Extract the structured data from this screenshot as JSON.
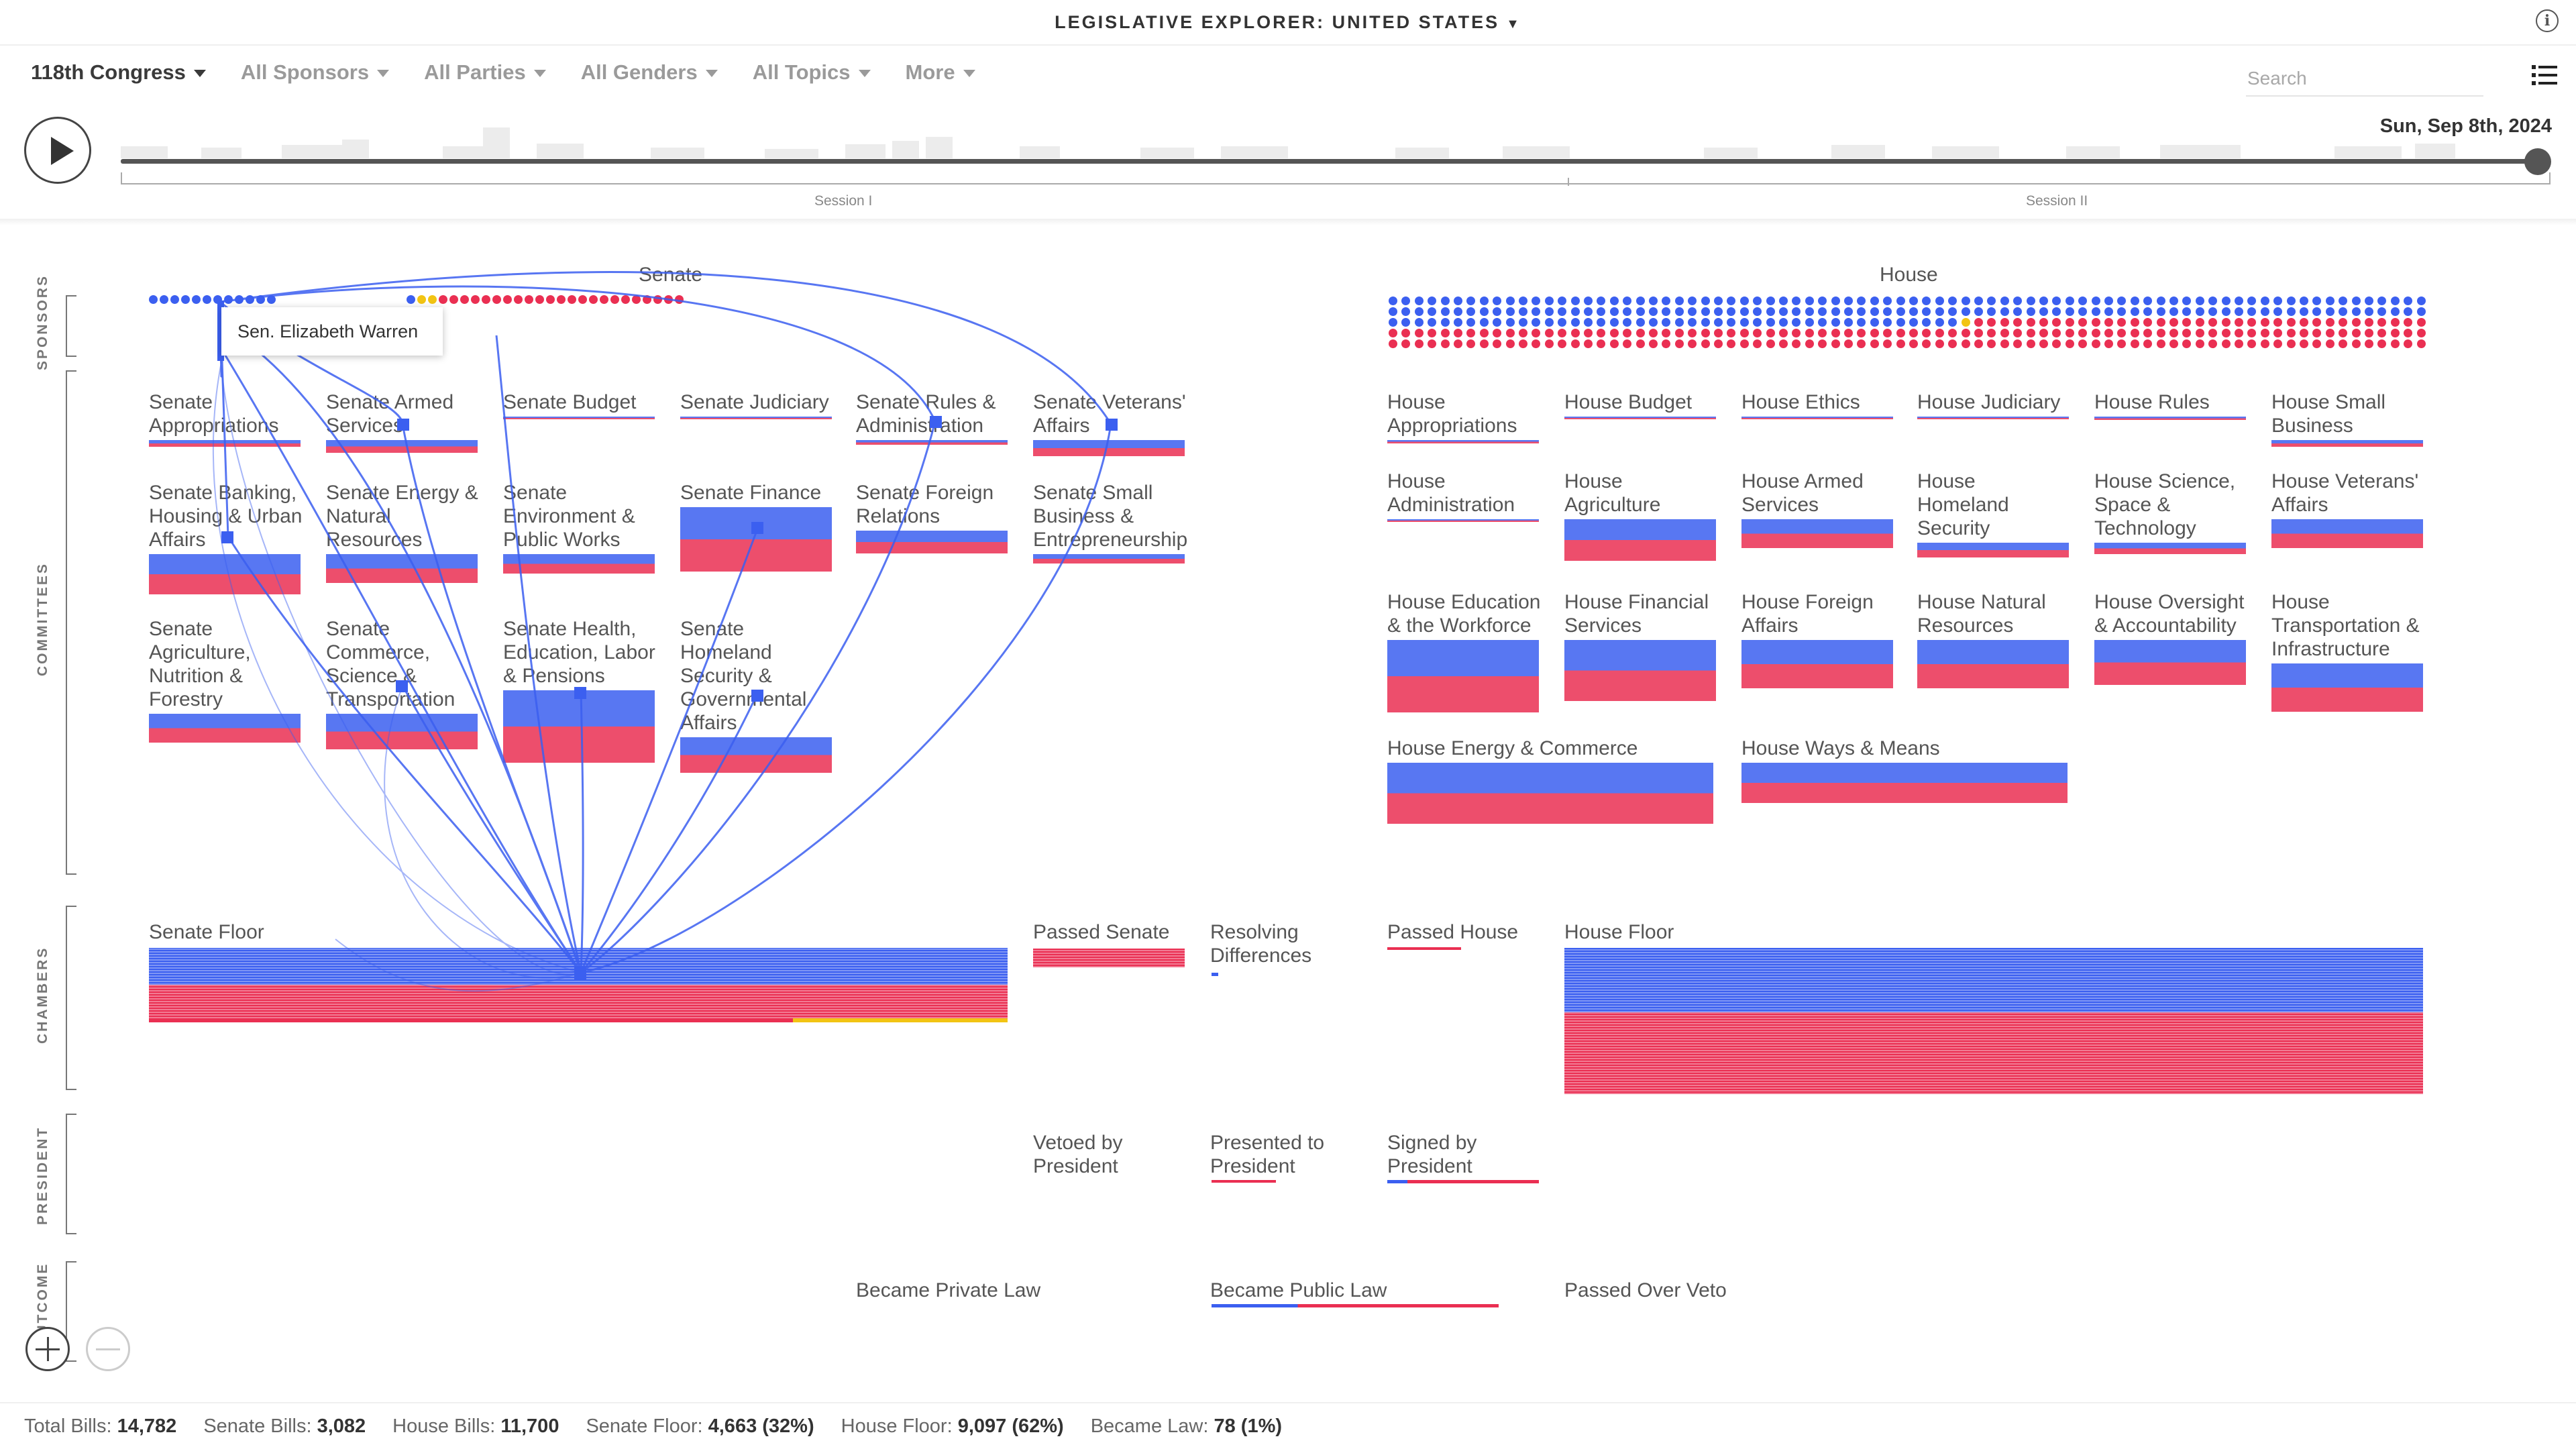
{
  "app": {
    "title": "LEGISLATIVE EXPLORER: UNITED STATES"
  },
  "filters": [
    {
      "label": "118th Congress"
    },
    {
      "label": "All Sponsors"
    },
    {
      "label": "All Parties"
    },
    {
      "label": "All Genders"
    },
    {
      "label": "All Topics"
    },
    {
      "label": "More"
    }
  ],
  "search": {
    "placeholder": "Search",
    "value": ""
  },
  "timeline": {
    "date": "Sun, Sep 8th, 2024",
    "progress": 1.0,
    "sessions": [
      "Session I",
      "Session II"
    ]
  },
  "row_labels": {
    "sponsors": "SPONSORS",
    "committees": "COMMITTEES",
    "chambers": "CHAMBERS",
    "president": "PRESIDENT",
    "outcome": "OUTCOME"
  },
  "chambers": {
    "senate": "Senate",
    "house": "House"
  },
  "tooltip": "Sen. Elizabeth Warren",
  "colors": {
    "democrat": "#3b5ff0",
    "republican": "#ea2f52",
    "independent": "#f2c413"
  },
  "senate_committees": [
    {
      "name": "Senate Appropriations",
      "level": 0.04
    },
    {
      "name": "Senate Armed Services",
      "level": 0.08
    },
    {
      "name": "Senate Budget",
      "level": 0.0
    },
    {
      "name": "Senate Judiciary",
      "level": 0.0
    },
    {
      "name": "Senate Rules & Administration",
      "level": 0.03
    },
    {
      "name": "Senate Veterans' Affairs",
      "level": 0.1
    },
    {
      "name": "Senate Banking, Housing & Urban Affairs",
      "level": 0.25
    },
    {
      "name": "Senate Energy & Natural Resources",
      "level": 0.18
    },
    {
      "name": "Senate Environment & Public Works",
      "level": 0.12
    },
    {
      "name": "Senate Finance",
      "level": 0.4
    },
    {
      "name": "Senate Foreign Relations",
      "level": 0.14
    },
    {
      "name": "Senate Small Business & Entrepreneurship",
      "level": 0.06
    },
    {
      "name": "Senate Agriculture, Nutrition & Forestry",
      "level": 0.18
    },
    {
      "name": "Senate Commerce, Science & Transportation",
      "level": 0.22
    },
    {
      "name": "Senate Health, Education, Labor & Pensions",
      "level": 0.45
    },
    {
      "name": "Senate Homeland Security & Governmental Affairs",
      "level": 0.22
    }
  ],
  "house_committees": [
    {
      "name": "House Appropriations",
      "level": 0.02
    },
    {
      "name": "House Budget",
      "level": 0.0
    },
    {
      "name": "House Ethics",
      "level": 0.0
    },
    {
      "name": "House Judiciary",
      "level": 0.0
    },
    {
      "name": "House Rules",
      "level": 0.02
    },
    {
      "name": "House Small Business",
      "level": 0.04
    },
    {
      "name": "House Administration",
      "level": 0.0
    },
    {
      "name": "House Agriculture",
      "level": 0.26
    },
    {
      "name": "House Armed Services",
      "level": 0.18
    },
    {
      "name": "House Homeland Security",
      "level": 0.09
    },
    {
      "name": "House Science, Space & Technology",
      "level": 0.07
    },
    {
      "name": "House Veterans' Affairs",
      "level": 0.18
    },
    {
      "name": "House Education & the Workforce",
      "level": 0.45
    },
    {
      "name": "House Financial Services",
      "level": 0.38
    },
    {
      "name": "House Foreign Affairs",
      "level": 0.3
    },
    {
      "name": "House Natural Resources",
      "level": 0.3
    },
    {
      "name": "House Oversight & Accountability",
      "level": 0.28
    },
    {
      "name": "House Transportation & Infrastructure",
      "level": 0.3
    },
    {
      "name": "House Energy & Commerce",
      "level": 0.38
    },
    {
      "name": "House Ways & Means",
      "level": 0.25
    }
  ],
  "stages": {
    "senate_floor": "Senate Floor",
    "passed_senate": "Passed Senate",
    "resolving_differences": "Resolving Differences",
    "passed_house": "Passed House",
    "house_floor": "House Floor",
    "vetoed": "Vetoed by President",
    "presented": "Presented to President",
    "signed": "Signed by President",
    "private_law": "Became Private Law",
    "public_law": "Became Public Law",
    "passed_over_veto": "Passed Over Veto"
  },
  "footer": {
    "total_label": "Total Bills:",
    "total": "14,782",
    "senate_label": "Senate Bills:",
    "senate": "3,082",
    "house_label": "House Bills:",
    "house": "11,700",
    "senate_floor_label": "Senate Floor:",
    "senate_floor": "4,663 (32%)",
    "house_floor_label": "House Floor:",
    "house_floor": "9,097 (62%)",
    "law_label": "Became Law:",
    "law": "78 (1%)"
  }
}
